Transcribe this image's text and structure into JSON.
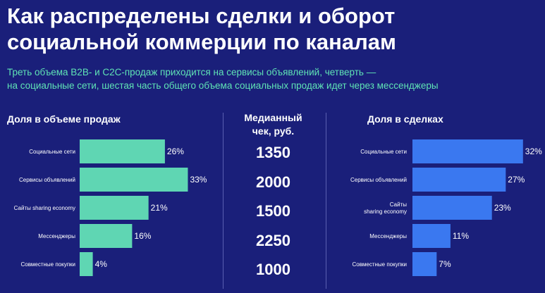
{
  "title_line1": "Как распределены сделки и оборот",
  "title_line2": "социальной коммерции по каналам",
  "subtitle_line1": "Треть объема B2B- и C2C-продаж приходится на сервисы объявлений, четверть —",
  "subtitle_line2": "на социальные сети, шестая часть общего объема социальных продаж идет через мессенджеры",
  "colors": {
    "background": "#1a1f7a",
    "subtitle": "#5fe3b5",
    "green_bars": "#5fd6b3",
    "blue_bars": "#3a78f0"
  },
  "chart_data": [
    {
      "type": "bar",
      "orientation": "horizontal",
      "title": "Доля в объеме продаж",
      "categories": [
        "Социальные сети",
        "Сервисы объявлений",
        "Сайты sharing economy",
        "Мессенджеры",
        "Совместные покупки"
      ],
      "values": [
        26,
        33,
        21,
        16,
        4
      ],
      "value_labels": [
        "26%",
        "33%",
        "21%",
        "16%",
        "4%"
      ],
      "unit": "%"
    },
    {
      "type": "table",
      "title": "Медианный чек, руб.",
      "title_lines": [
        "Медианный",
        "чек, руб."
      ],
      "categories": [
        "Социальные сети",
        "Сервисы объявлений",
        "Сайты sharing economy",
        "Мессенджеры",
        "Совместные покупки"
      ],
      "values": [
        1350,
        2000,
        1500,
        2250,
        1000
      ]
    },
    {
      "type": "bar",
      "orientation": "horizontal",
      "title": "Доля в сделках",
      "categories": [
        "Социальные сети",
        "Сервисы объявлений",
        "Сайты sharing economy",
        "Мессенджеры",
        "Совместные покупки"
      ],
      "category_lines": [
        [
          "Социальные сети"
        ],
        [
          "Сервисы объявлений"
        ],
        [
          "Сайты",
          "sharing economy"
        ],
        [
          "Мессенджеры"
        ],
        [
          "Совместные покупки"
        ]
      ],
      "values": [
        32,
        27,
        23,
        11,
        7
      ],
      "value_labels": [
        "32%",
        "27%",
        "23%",
        "11%",
        "7%"
      ],
      "unit": "%"
    }
  ]
}
